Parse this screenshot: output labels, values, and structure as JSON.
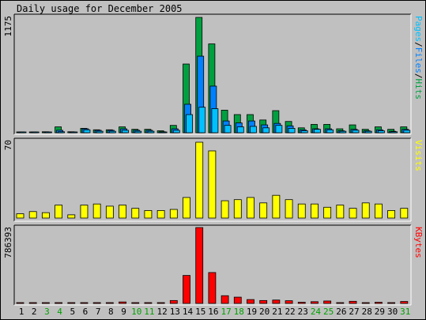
{
  "title": "Daily usage for December 2005",
  "colors": {
    "background": "#c0c0c0",
    "hits": "#00a040",
    "files": "#0080ff",
    "pages": "#00c0ff",
    "visits": "#ffff00",
    "kbytes": "#ff0000",
    "weekday_label": "#000000",
    "weekend_label": "#00a000"
  },
  "chart_data": [
    {
      "type": "bar",
      "panel": "hits_files_pages",
      "ymax_label": "1175",
      "legend": {
        "pages": "Pages",
        "sep1": "/",
        "files": "Files",
        "sep2": "/",
        "hits": "Hits"
      },
      "categories": [
        "1",
        "2",
        "3",
        "4",
        "5",
        "6",
        "7",
        "8",
        "9",
        "10",
        "11",
        "12",
        "13",
        "14",
        "15",
        "16",
        "17",
        "18",
        "19",
        "20",
        "21",
        "22",
        "23",
        "24",
        "25",
        "26",
        "27",
        "28",
        "29",
        "30",
        "31"
      ],
      "weekend_days": [
        "3",
        "4",
        "10",
        "11",
        "17",
        "18",
        "24",
        "25",
        "31"
      ],
      "ylim": [
        0,
        1175
      ],
      "series": [
        {
          "name": "Hits",
          "values": [
            5,
            5,
            10,
            60,
            10,
            45,
            30,
            30,
            60,
            35,
            35,
            20,
            75,
            700,
            1175,
            905,
            230,
            185,
            185,
            130,
            225,
            115,
            50,
            85,
            85,
            40,
            80,
            35,
            60,
            35,
            60
          ]
        },
        {
          "name": "Files",
          "values": [
            3,
            3,
            6,
            25,
            5,
            40,
            25,
            25,
            40,
            25,
            25,
            10,
            40,
            290,
            780,
            475,
            120,
            100,
            120,
            80,
            95,
            70,
            30,
            40,
            40,
            20,
            35,
            20,
            30,
            15,
            35
          ]
        },
        {
          "name": "Pages",
          "values": [
            2,
            2,
            4,
            10,
            3,
            30,
            15,
            15,
            25,
            15,
            15,
            5,
            25,
            185,
            260,
            245,
            75,
            60,
            65,
            50,
            75,
            45,
            20,
            35,
            30,
            15,
            25,
            15,
            20,
            10,
            25
          ]
        }
      ]
    },
    {
      "type": "bar",
      "panel": "visits",
      "ymax_label": "70",
      "legend": "Visits",
      "ylim": [
        0,
        70
      ],
      "series": [
        {
          "name": "Visits",
          "values": [
            4,
            6,
            5,
            12,
            3,
            12,
            13,
            11,
            12,
            9,
            7,
            7,
            8,
            19,
            70,
            62,
            16,
            17,
            19,
            14,
            21,
            17,
            13,
            13,
            10,
            12,
            9,
            14,
            13,
            7,
            9
          ]
        }
      ]
    },
    {
      "type": "bar",
      "panel": "kbytes",
      "ymax_label": "786393",
      "legend": "KBytes",
      "ylim": [
        0,
        786393
      ],
      "series": [
        {
          "name": "KBytes",
          "values": [
            8000,
            8000,
            8000,
            8000,
            8000,
            8000,
            8000,
            8000,
            15000,
            8000,
            8000,
            8000,
            30000,
            290000,
            786393,
            320000,
            80000,
            65000,
            40000,
            30000,
            35000,
            28000,
            12000,
            18000,
            25000,
            8000,
            22000,
            8000,
            12000,
            8000,
            20000
          ]
        }
      ]
    }
  ]
}
